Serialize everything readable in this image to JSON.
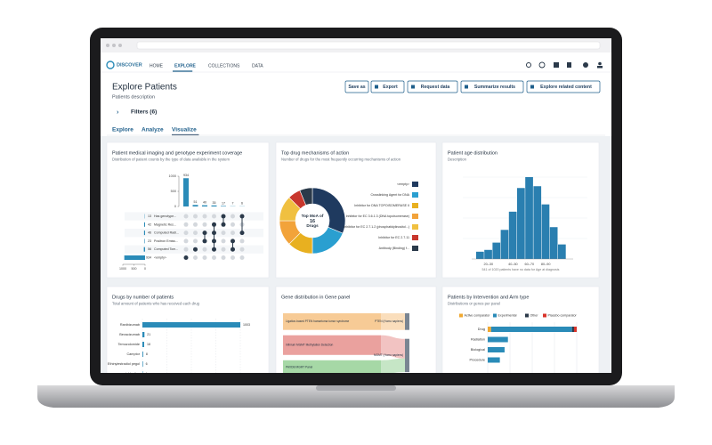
{
  "nav": {
    "logo": "DISCOVER",
    "tabs": [
      "HOME",
      "EXPLORE",
      "COLLECTIONS",
      "DATA"
    ]
  },
  "header": {
    "title": "Explore Patients",
    "description": "Patients description",
    "buttons": [
      "Save as",
      "Export",
      "Request data",
      "Summarize results",
      "Explore related content"
    ]
  },
  "filters": {
    "label": "Filters (6)"
  },
  "view_tabs": [
    "Explore",
    "Analyze",
    "Visualize"
  ],
  "chart_data": [
    {
      "type": "upset",
      "title": "Patient medical imaging and genotype experiment coverage",
      "subtitle": "Distribution of patient counts by the type of data available in the system",
      "values": [
        934,
        51,
        40,
        35,
        17,
        7,
        6
      ],
      "ylim": [
        0,
        1000
      ],
      "yticks": [
        0,
        500,
        1000
      ],
      "sets": [
        "Has genotype...",
        "Magnetic Res...",
        "Computed Radi...",
        "Positron Emiss...",
        "Computed Tom...",
        "<empty>"
      ],
      "set_sizes": [
        13,
        42,
        46,
        23,
        56,
        934
      ],
      "xlim": [
        1000,
        0
      ],
      "xticks": [
        1000,
        500,
        0
      ],
      "color": "#2a8bb8"
    },
    {
      "type": "donut",
      "title": "Top drug mechanisms of action",
      "subtitle": "Number of drugs for the most frequently occurring mechanisms of action",
      "center_label": "Top MoA of",
      "center_value": 16,
      "center_unit": "Drugs",
      "categories": [
        "<empty>",
        "Crosslinking Agent for DNA",
        "Inhibitor for DNA TOPOISOMERASE II",
        "Inhibitor for EC 3.6.1.3 (DNA topoisomerase)",
        "Inhibitor for EC 2.7.1.2 (phosphatidylinositol...)",
        "Inhibitor for EC 2.7.11",
        "Antibody (Binding) f..."
      ],
      "values": [
        5,
        3,
        2,
        2,
        2,
        1,
        1
      ],
      "colors": [
        "#1f3a5f",
        "#2a9fd0",
        "#e8b020",
        "#f2a33a",
        "#f0c040",
        "#c8372d",
        "#2b3a4a"
      ]
    },
    {
      "type": "histogram",
      "title": "Patient age distribution",
      "subtitle": "Description",
      "categories": [
        null,
        "20–30",
        null,
        null,
        "40–50",
        null,
        "60–70",
        null,
        "80–90",
        null,
        null
      ],
      "values": [
        8,
        10,
        18,
        32,
        52,
        78,
        90,
        80,
        60,
        35,
        16
      ],
      "color": "#2a7fb0",
      "note": "541 of 1020 patients have no data for Age at diagnosis"
    },
    {
      "type": "hbar",
      "title": "Drugs by number of patients",
      "subtitle": "Total amount of patients who has received each drug",
      "categories": [
        "Ranibizumab",
        "Bevacizumab",
        "Temozolomide",
        "Camptor",
        "Ethinylestradiol pegol",
        "vinblastine"
      ],
      "values": [
        1003,
        21,
        18,
        8,
        6,
        4
      ],
      "color": "#2a8bb8"
    },
    {
      "type": "sankey",
      "title": "Gene distribution in Gene panel",
      "sources": [
        "Ligation-based PTEN hamartoma tumor syndrome",
        "Infinium MGMT Methylation Detection",
        "PAXDB MGMT Panel"
      ],
      "targets": [
        "PTEN (Homo sapiens)",
        "MGMT (Homo sapiens)"
      ],
      "links": [
        {
          "source": 0,
          "target": 0,
          "value": 11
        },
        {
          "source": 1,
          "target": 1,
          "value": 13
        },
        {
          "source": 2,
          "target": 1,
          "value": 9
        }
      ],
      "colors": [
        "#f0a040",
        "#d9534f",
        "#5cb85c"
      ]
    },
    {
      "type": "stacked_hbar",
      "title": "Patients by Intervention and Arm type",
      "subtitle": "Distributions or genes per panel",
      "categories": [
        "Drug",
        "Radiation",
        "Biological",
        "Procedure"
      ],
      "series": [
        {
          "name": "Active comparator",
          "color": "#f0a830",
          "values": [
            5,
            0,
            0,
            0
          ]
        },
        {
          "name": "Experimental",
          "color": "#2a8bb8",
          "values": [
            120,
            30,
            25,
            18
          ]
        },
        {
          "name": "Other",
          "color": "#2b3a4a",
          "values": [
            3,
            0,
            0,
            0
          ]
        },
        {
          "name": "Placebo comparator",
          "color": "#d9342b",
          "values": [
            4,
            0,
            0,
            0
          ]
        }
      ]
    }
  ]
}
